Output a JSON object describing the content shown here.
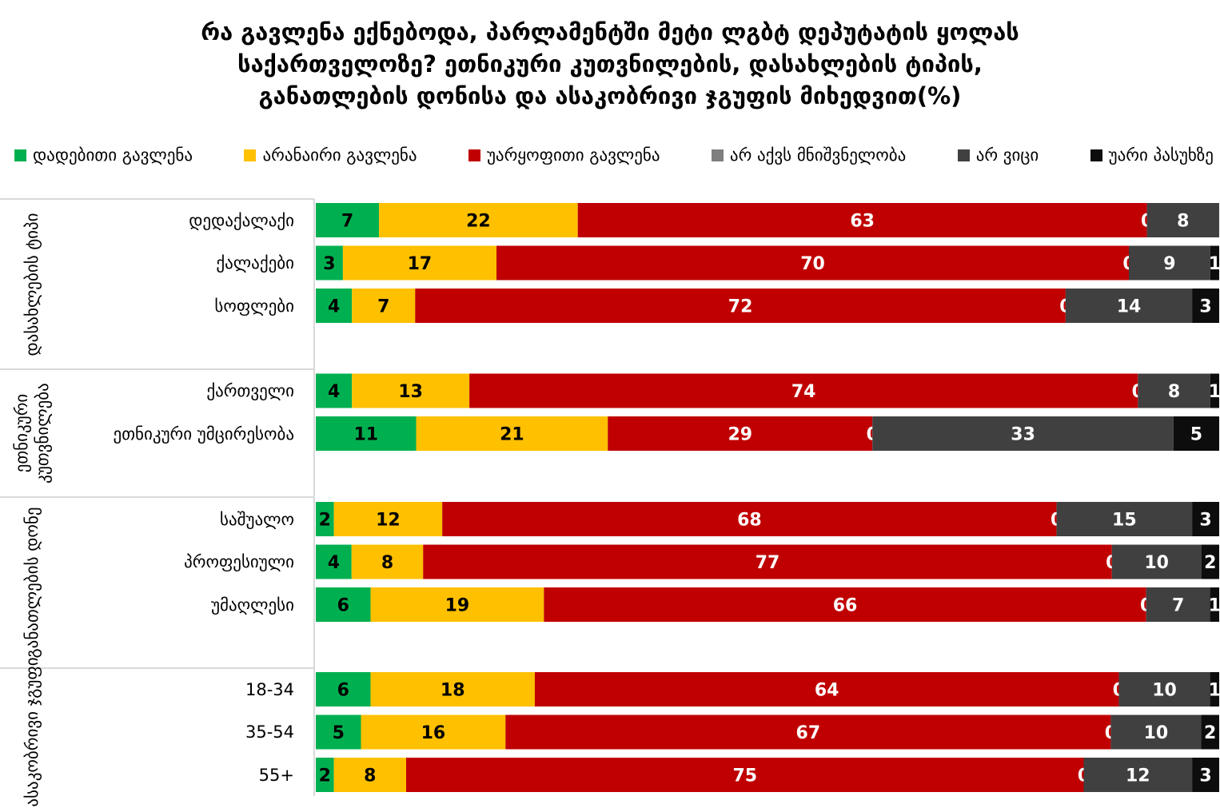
{
  "chart_data": {
    "type": "bar",
    "orientation": "horizontal",
    "stacked": true,
    "title_lines": [
      "რა გავლენა ექნებოდა, პარლამენტში მეტი ლგბტ  დეპუტატის ყოლას",
      "საქართველოზე? ეთნიკური კუთვნილების, დასახლების ტიპის,",
      "განათლების დონისა და ასაკობრივი ჯგუფის მიხედვით(%)"
    ],
    "xlim": [
      0,
      100
    ],
    "legend_position": "top",
    "series": [
      {
        "name": "დადებითი გავლენა",
        "color": "#00b050"
      },
      {
        "name": "არანაირი გავლენა",
        "color": "#ffc000"
      },
      {
        "name": "უარყოფითი გავლენა",
        "color": "#c00000"
      },
      {
        "name": "არ აქვს მნიშვნელობა",
        "color": "#7f7f7f"
      },
      {
        "name": "არ ვიცი",
        "color": "#404040"
      },
      {
        "name": "უარი პასუხზე",
        "color": "#0d0d0d"
      }
    ],
    "groups": [
      {
        "label": "დასახლების ტიპი",
        "rows": [
          {
            "category": "დედაქალაქი",
            "values": [
              7,
              22,
              63,
              0,
              8,
              0
            ]
          },
          {
            "category": "ქალაქები",
            "values": [
              3,
              17,
              70,
              0,
              9,
              1
            ]
          },
          {
            "category": "სოფლები",
            "values": [
              4,
              7,
              72,
              0,
              14,
              3
            ]
          }
        ]
      },
      {
        "label": "ეთნიკური კუთვნილება",
        "rows": [
          {
            "category": "ქართველი",
            "values": [
              4,
              13,
              74,
              0,
              8,
              1
            ]
          },
          {
            "category": "ეთნიკური უმცირესობა",
            "values": [
              11,
              21,
              29,
              0,
              33,
              5
            ]
          }
        ]
      },
      {
        "label": "განათლების დონე",
        "rows": [
          {
            "category": "საშუალო",
            "values": [
              2,
              12,
              68,
              0,
              15,
              3
            ]
          },
          {
            "category": "პროფესიული",
            "values": [
              4,
              8,
              77,
              0,
              10,
              2
            ]
          },
          {
            "category": "უმაღლესი",
            "values": [
              6,
              19,
              66,
              0,
              7,
              1
            ]
          }
        ]
      },
      {
        "label": "ასაკობრივი ჯგუფი",
        "rows": [
          {
            "category": "18-34",
            "values": [
              6,
              18,
              64,
              0,
              10,
              1
            ]
          },
          {
            "category": "35-54",
            "values": [
              5,
              16,
              67,
              0,
              10,
              2
            ]
          },
          {
            "category": "55+",
            "values": [
              2,
              8,
              75,
              0,
              12,
              3
            ]
          }
        ]
      }
    ]
  }
}
